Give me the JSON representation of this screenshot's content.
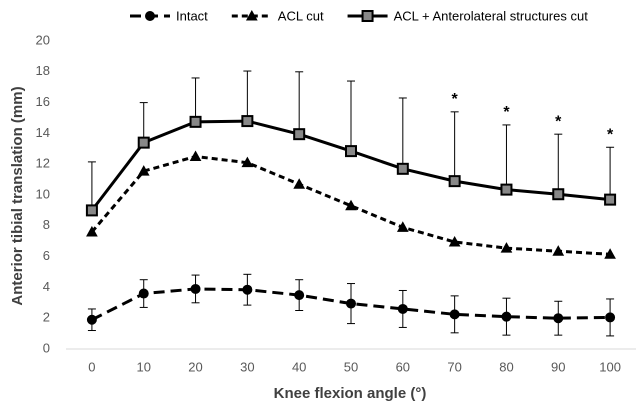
{
  "chart_data": {
    "type": "line",
    "x_label": "Knee flexion angle (°)",
    "y_label": "Anterior tibial translation (mm)",
    "x": [
      0,
      10,
      20,
      30,
      40,
      50,
      60,
      70,
      80,
      90,
      100
    ],
    "xlim": [
      -5,
      105
    ],
    "xticks": [
      0,
      10,
      20,
      30,
      40,
      50,
      60,
      70,
      80,
      90,
      100
    ],
    "ylim": [
      0,
      20
    ],
    "yticks": [
      0,
      2,
      4,
      6,
      8,
      10,
      12,
      14,
      16,
      18,
      20
    ],
    "grid": false,
    "legend": "top",
    "series": [
      {
        "name": "Intact",
        "color": "#000000",
        "marker": "circle",
        "dash": "long",
        "values": [
          1.9,
          3.6,
          3.9,
          3.85,
          3.5,
          2.95,
          2.6,
          2.25,
          2.1,
          2.0,
          2.05
        ],
        "errors": [
          0.7,
          0.9,
          0.9,
          1.0,
          1.0,
          1.3,
          1.2,
          1.2,
          1.2,
          1.1,
          1.2
        ],
        "error_direction": "both"
      },
      {
        "name": "ACL cut",
        "color": "#000000",
        "marker": "triangle",
        "dash": "short",
        "values": [
          7.6,
          11.55,
          12.5,
          12.1,
          10.7,
          9.3,
          7.9,
          6.95,
          6.55,
          6.35,
          6.15
        ]
      },
      {
        "name": "ACL + Anterolateral structures cut",
        "color": "#000000",
        "marker": "square",
        "dash": "solid",
        "values": [
          9.0,
          13.4,
          14.75,
          14.8,
          13.95,
          12.85,
          11.7,
          10.9,
          10.35,
          10.05,
          9.7
        ],
        "errors": [
          3.15,
          2.6,
          2.85,
          3.25,
          4.05,
          4.55,
          4.6,
          4.5,
          4.2,
          3.9,
          3.4
        ],
        "error_direction": "up"
      }
    ],
    "annotations": [
      {
        "x": 70,
        "text": "*"
      },
      {
        "x": 80,
        "text": "*"
      },
      {
        "x": 90,
        "text": "*"
      },
      {
        "x": 100,
        "text": "*"
      }
    ]
  }
}
